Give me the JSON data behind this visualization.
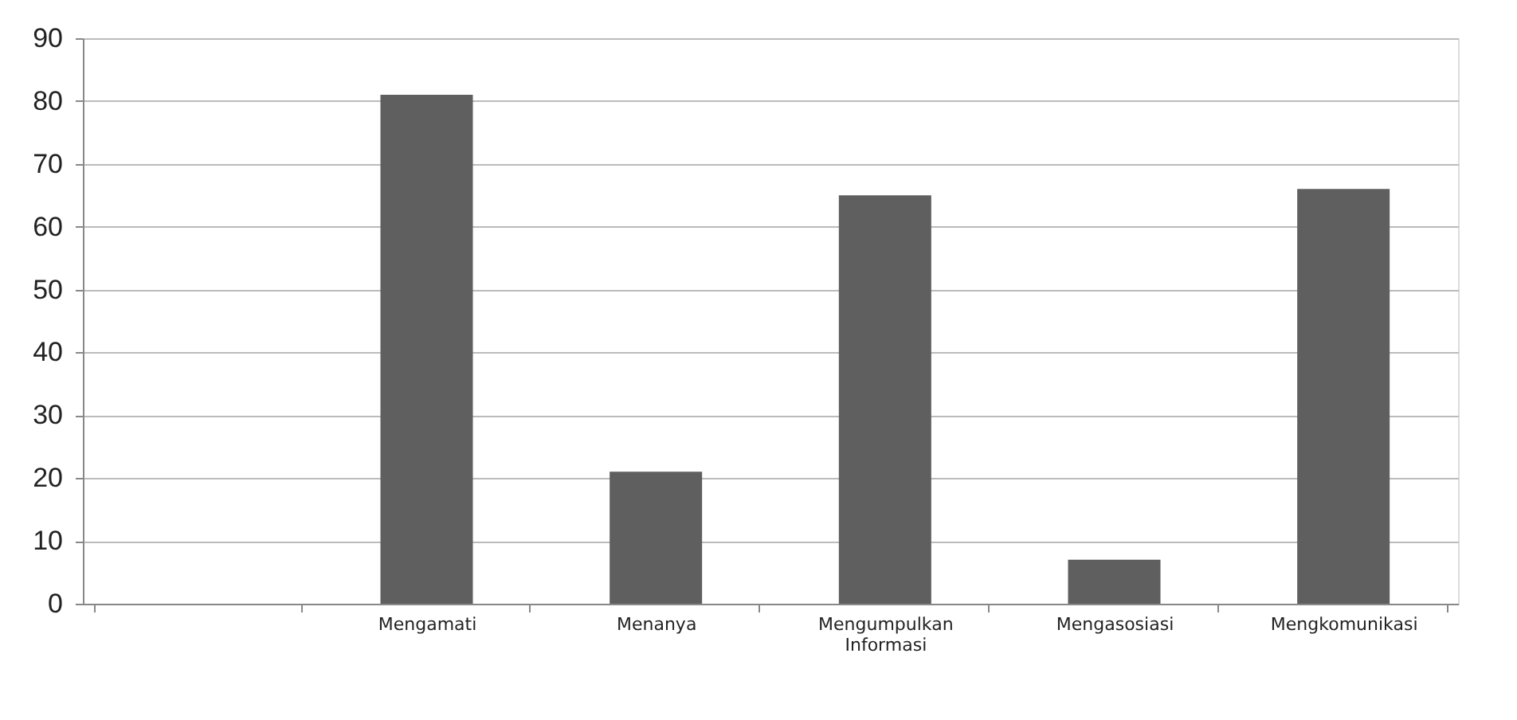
{
  "chart_data": {
    "type": "bar",
    "categories": [
      null,
      "Mengamati",
      "Menanya",
      "Mengumpulkan Informasi",
      "Mengasosiasi",
      "Mengkomunikasi"
    ],
    "values": [
      null,
      81,
      21,
      65,
      7,
      66
    ],
    "color": "#5f5f5f",
    "ylim": [
      0,
      90
    ],
    "yticks": [
      0,
      10,
      20,
      30,
      40,
      50,
      60,
      70,
      80,
      90
    ],
    "grid": "y"
  }
}
